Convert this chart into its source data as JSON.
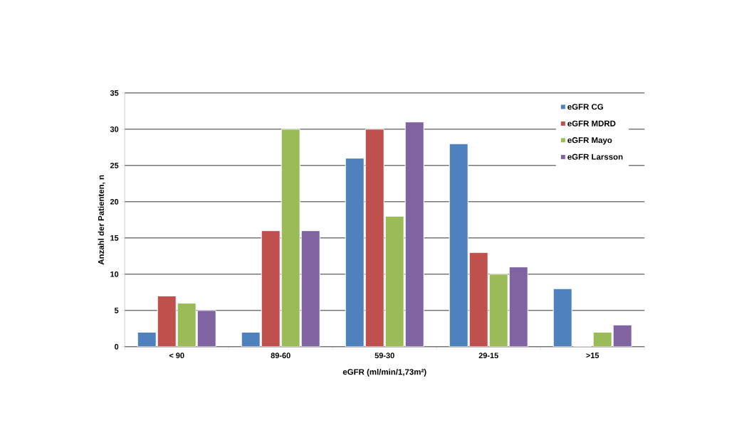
{
  "chart_data": {
    "type": "bar",
    "xlabel": "eGFR (ml/min/1,73m²)",
    "ylabel": "Anzahl der Patienten, n",
    "categories": [
      "< 90",
      "89-60",
      "59-30",
      "29-15",
      ">15"
    ],
    "series": [
      {
        "name": "eGFR CG",
        "color": "#4f81bd",
        "values": [
          2,
          2,
          26,
          28,
          8
        ]
      },
      {
        "name": "eGFR MDRD",
        "color": "#c0504d",
        "values": [
          7,
          16,
          30,
          13,
          0
        ]
      },
      {
        "name": "eGFR Mayo",
        "color": "#9bbb59",
        "values": [
          6,
          30,
          18,
          10,
          2
        ]
      },
      {
        "name": "eGFR Larsson",
        "color": "#8064a2",
        "values": [
          5,
          16,
          31,
          11,
          3
        ]
      }
    ],
    "ylim": [
      0,
      35
    ],
    "yticks": [
      0,
      5,
      10,
      15,
      20,
      25,
      30,
      35
    ],
    "grid": "y",
    "legend": "top right"
  }
}
